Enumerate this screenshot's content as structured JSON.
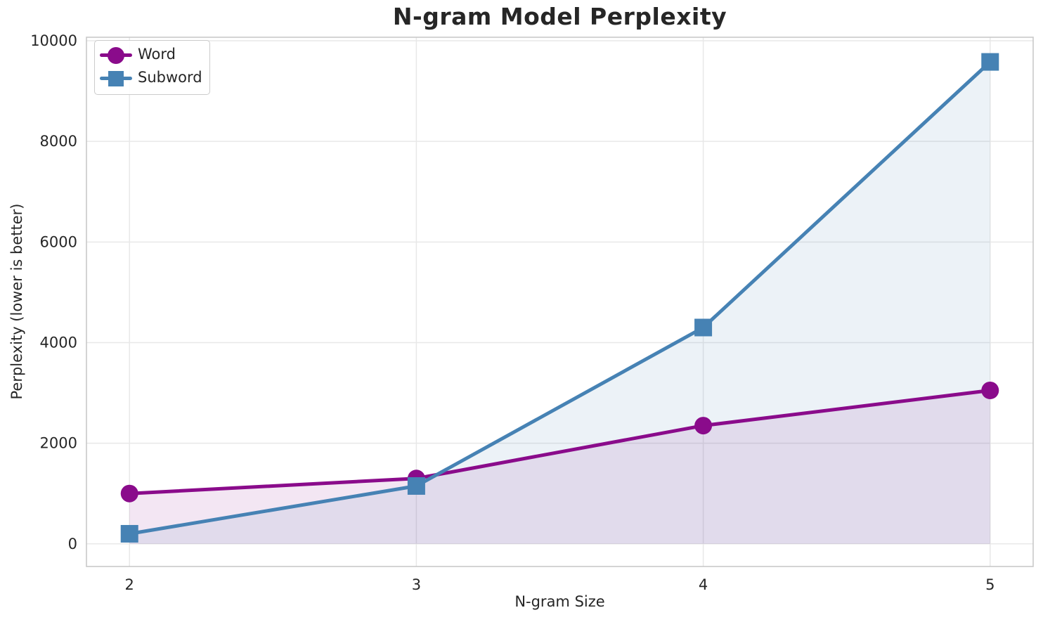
{
  "figure": {
    "background": "#ffffff",
    "text_color": "#262626"
  },
  "chart_data": {
    "type": "line",
    "title": "N-gram Model Perplexity",
    "xlabel": "N-gram Size",
    "ylabel": "Perplexity (lower is better)",
    "x": [
      2,
      3,
      4,
      5
    ],
    "series": [
      {
        "name": "Word",
        "values": [
          1000,
          1300,
          2350,
          3050
        ],
        "color": "#8A0B8B",
        "marker": "circle",
        "area_fill": true,
        "fill_alpha": 0.1
      },
      {
        "name": "Subword",
        "values": [
          200,
          1150,
          4300,
          9580
        ],
        "color": "#4682B4",
        "marker": "square",
        "area_fill": true,
        "fill_alpha": 0.1
      }
    ],
    "xticks": [
      2,
      3,
      4,
      5
    ],
    "yticks": [
      0,
      2000,
      4000,
      6000,
      8000,
      10000
    ],
    "xlim": [
      1.85,
      5.15
    ],
    "ylim": [
      -450,
      10070
    ],
    "area_fill_baseline": 0,
    "grid": true,
    "grid_color": "#e8e8e8",
    "spine_color": "#c9c9c9",
    "legend_position": "upper left",
    "line_width": 5,
    "marker_size": 25
  }
}
